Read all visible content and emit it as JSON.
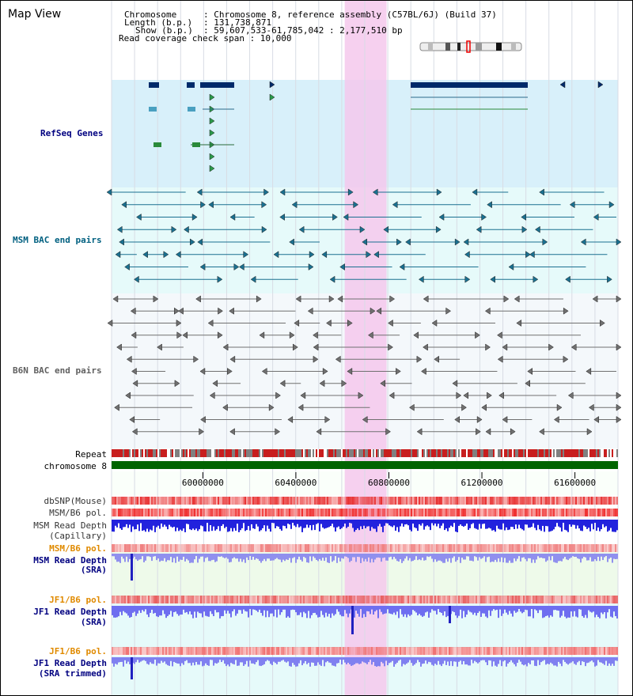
{
  "title": "Map View",
  "header": {
    "chrom_key": "Chromosome",
    "chrom_val": ": Chromosome 8, reference assembly (C57BL/6J) (Build 37)",
    "length_key": "Length (b.p.)",
    "length_val": ": 131,738,871",
    "show_key": "Show (b.p.)",
    "show_val": ": 59,607,533-61,785,042 : 2,177,510 bp",
    "coverage": "Read coverage check span : 10,000"
  },
  "tracks": {
    "refseq": "RefSeq Genes",
    "msm_bac": "MSM BAC end pairs",
    "b6n_bac": "B6N BAC end pairs",
    "repeat": "Repeat",
    "chromosome": "chromosome 8",
    "dbsnp": "dbSNP(Mouse)",
    "msm_b6_pol": "MSM/B6 pol.",
    "msm_depth_1": "MSM Read Depth",
    "msm_depth_1b": "(Capillary)",
    "msm_b6_pol2": "MSM/B6 pol.",
    "msm_depth_2": "MSM Read Depth",
    "msm_depth_2b": "(SRA)",
    "jf1_pol": "JF1/B6 pol.",
    "jf1_depth": "JF1 Read Depth",
    "jf1_depth_b": "(SRA)",
    "jf1_pol2": "JF1/B6 pol.",
    "jf1_depth_t": "JF1 Read Depth",
    "jf1_depth_tb": "(SRA trimmed)"
  },
  "axis": {
    "ticks": [
      "60000000",
      "60400000",
      "60800000",
      "61200000",
      "61600000"
    ],
    "tick_values": [
      60000000,
      60400000,
      60800000,
      61200000,
      61600000
    ],
    "start": 59607533,
    "end": 61785042
  },
  "highlight": {
    "start": 60610000,
    "end": 60790000
  },
  "colors": {
    "label_blue": "#000080",
    "label_teal": "#006080",
    "label_gray": "#606060",
    "label_orange": "#e08a00",
    "refseq_bg": "#d8f0fa",
    "msm_bg": "#e6fafa",
    "green_bg": "#eefaea",
    "highlight": "#f5c8ec",
    "gene_dark": "#002a6a",
    "chrom_green": "#006400"
  }
}
